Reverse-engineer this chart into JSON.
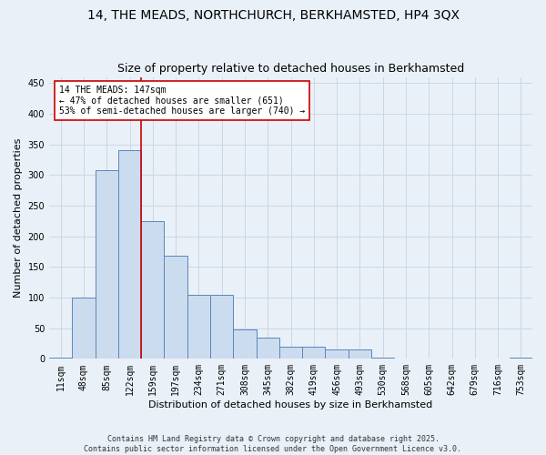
{
  "title": "14, THE MEADS, NORTHCHURCH, BERKHAMSTED, HP4 3QX",
  "subtitle": "Size of property relative to detached houses in Berkhamsted",
  "xlabel": "Distribution of detached houses by size in Berkhamsted",
  "ylabel": "Number of detached properties",
  "categories": [
    "11sqm",
    "48sqm",
    "85sqm",
    "122sqm",
    "159sqm",
    "197sqm",
    "234sqm",
    "271sqm",
    "308sqm",
    "345sqm",
    "382sqm",
    "419sqm",
    "456sqm",
    "493sqm",
    "530sqm",
    "568sqm",
    "605sqm",
    "642sqm",
    "679sqm",
    "716sqm",
    "753sqm"
  ],
  "values": [
    2,
    100,
    308,
    340,
    225,
    168,
    105,
    105,
    48,
    35,
    20,
    20,
    15,
    15,
    2,
    0,
    0,
    0,
    0,
    0,
    2
  ],
  "bar_color": "#ccdcef",
  "bar_edge_color": "#5588bb",
  "grid_color": "#c8d8e8",
  "background_color": "#eaf0f8",
  "vline_color": "#cc0000",
  "vline_pos": 3.5,
  "annotation_text": "14 THE MEADS: 147sqm\n← 47% of detached houses are smaller (651)\n53% of semi-detached houses are larger (740) →",
  "annotation_box_color": "#ffffff",
  "annotation_box_edge": "#cc0000",
  "footer": "Contains HM Land Registry data © Crown copyright and database right 2025.\nContains public sector information licensed under the Open Government Licence v3.0.",
  "ylim": [
    0,
    460
  ],
  "yticks": [
    0,
    50,
    100,
    150,
    200,
    250,
    300,
    350,
    400,
    450
  ],
  "title_fontsize": 10,
  "axis_label_fontsize": 8,
  "tick_fontsize": 7,
  "annotation_fontsize": 7,
  "footer_fontsize": 6
}
